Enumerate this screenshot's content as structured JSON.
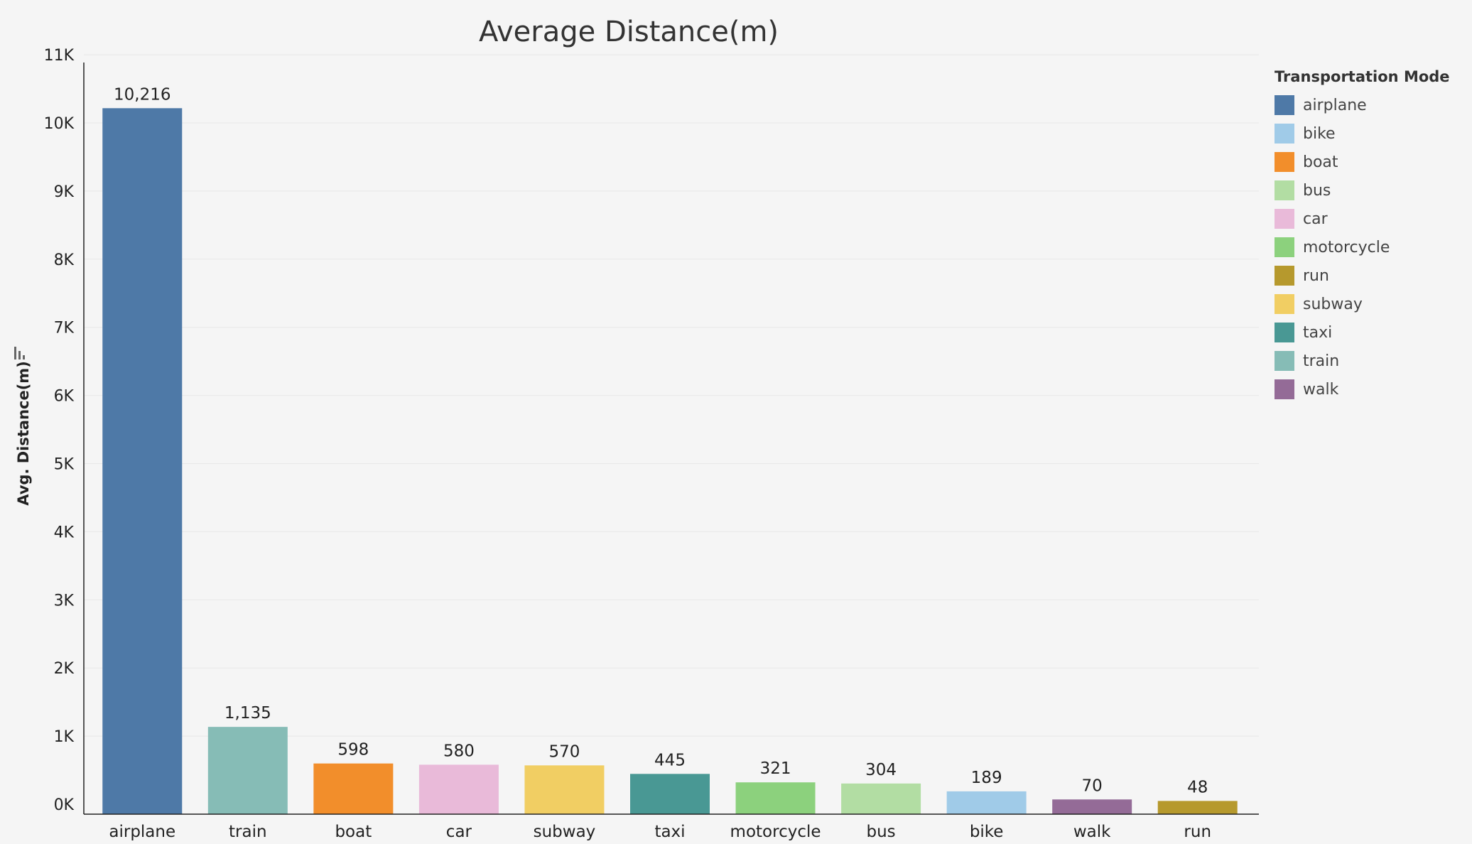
{
  "chart_data": {
    "type": "bar",
    "title": "Average Distance(m)",
    "ylabel": "Avg. Distance(m)",
    "xlabel": "",
    "ylim": [
      0,
      11000
    ],
    "yticks": [
      0,
      1000,
      2000,
      3000,
      4000,
      5000,
      6000,
      7000,
      8000,
      9000,
      10000,
      11000
    ],
    "ytick_labels": [
      "0K",
      "1K",
      "2K",
      "3K",
      "4K",
      "5K",
      "6K",
      "7K",
      "8K",
      "9K",
      "10K",
      "11K"
    ],
    "grid": true,
    "categories": [
      "airplane",
      "train",
      "boat",
      "car",
      "subway",
      "taxi",
      "motorcycle",
      "bus",
      "bike",
      "walk",
      "run"
    ],
    "values": [
      10216,
      1135,
      598,
      580,
      570,
      445,
      321,
      304,
      189,
      70,
      48
    ],
    "value_labels": [
      "10,216",
      "1,135",
      "598",
      "580",
      "570",
      "445",
      "321",
      "304",
      "189",
      "70",
      "48"
    ],
    "legend": {
      "title": "Transportation Mode",
      "placement": "right",
      "items": [
        {
          "label": "airplane",
          "color": "#4e79a7"
        },
        {
          "label": "bike",
          "color": "#a0cbe8"
        },
        {
          "label": "boat",
          "color": "#f28e2b"
        },
        {
          "label": "bus",
          "color": "#b2dda3"
        },
        {
          "label": "car",
          "color": "#e9bad9"
        },
        {
          "label": "motorcycle",
          "color": "#8cd17d"
        },
        {
          "label": "run",
          "color": "#b6992d"
        },
        {
          "label": "subway",
          "color": "#f1ce63"
        },
        {
          "label": "taxi",
          "color": "#499894"
        },
        {
          "label": "train",
          "color": "#86bcb6"
        },
        {
          "label": "walk",
          "color": "#946b97"
        }
      ]
    }
  },
  "icons": {
    "sort": "sort-descending-icon"
  }
}
